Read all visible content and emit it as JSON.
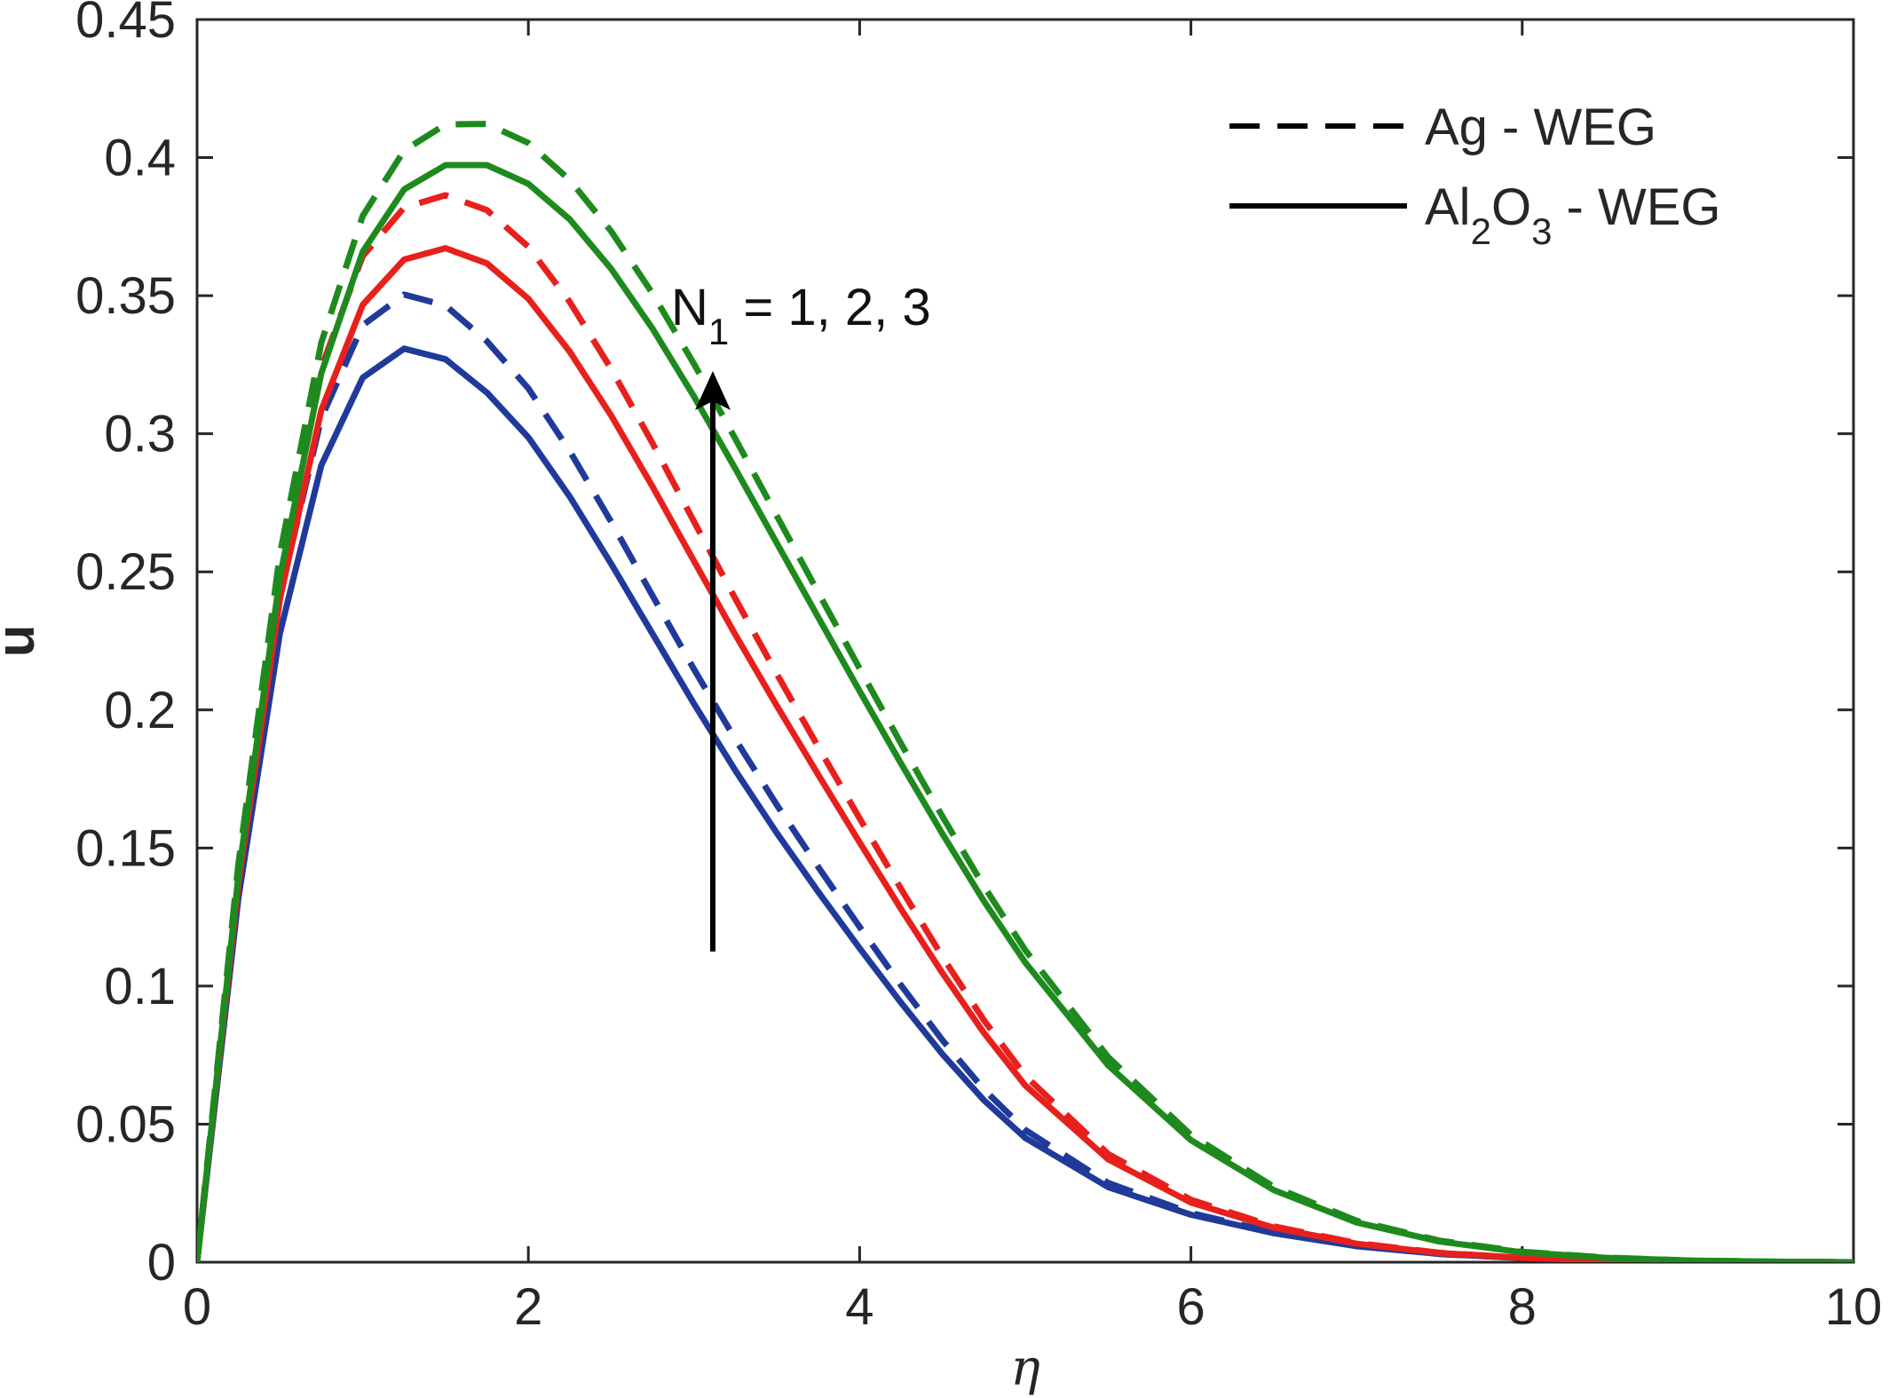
{
  "chart_data": {
    "type": "line",
    "title": "",
    "xlabel": "η",
    "ylabel": "u",
    "xlim": [
      0,
      10
    ],
    "ylim": [
      0,
      0.45
    ],
    "xticks": [
      "0",
      "2",
      "4",
      "6",
      "8",
      "10"
    ],
    "yticks": [
      "0",
      "0.05",
      "0.1",
      "0.15",
      "0.2",
      "0.25",
      "0.3",
      "0.35",
      "0.4",
      "0.45"
    ],
    "grid": false,
    "legend_position": "top-right",
    "legend": [
      {
        "label": "Ag - WEG",
        "style": "dashed"
      },
      {
        "label": "Al₂O₃ - WEG",
        "style": "solid"
      }
    ],
    "annotation": "N₁ = 1, 2, 3",
    "x": [
      0,
      0.25,
      0.5,
      0.75,
      1,
      1.25,
      1.5,
      1.75,
      2,
      2.25,
      2.5,
      2.75,
      3,
      3.25,
      3.5,
      3.75,
      4,
      4.25,
      4.5,
      4.75,
      5,
      5.5,
      6,
      6.5,
      7,
      7.5,
      8,
      8.5,
      9,
      9.5,
      10
    ],
    "series": [
      {
        "color": "#1f3a9a",
        "style": "dashed",
        "values": [
          0,
          0.1399,
          0.2412,
          0.3056,
          0.3393,
          0.3504,
          0.3464,
          0.3335,
          0.3164,
          0.2937,
          0.2681,
          0.2413,
          0.2147,
          0.1893,
          0.1656,
          0.1431,
          0.1214,
          0.1003,
          0.0804,
          0.0626,
          0.0479,
          0.0287,
          0.0178,
          0.0108,
          0.0059,
          0.003,
          0.0015,
          0.0006,
          0.0002,
          0.0001,
          0
        ]
      },
      {
        "color": "#1f3a9a",
        "style": "solid",
        "values": [
          0,
          0.132,
          0.2277,
          0.2885,
          0.3203,
          0.3308,
          0.327,
          0.3149,
          0.2987,
          0.2772,
          0.2529,
          0.2275,
          0.2022,
          0.178,
          0.1554,
          0.1341,
          0.1137,
          0.094,
          0.0753,
          0.0587,
          0.045,
          0.0272,
          0.0172,
          0.0105,
          0.0058,
          0.003,
          0.0015,
          0.0006,
          0.0002,
          0.0001,
          0
        ]
      },
      {
        "color": "#e8201c",
        "style": "dashed",
        "values": [
          0,
          0.1434,
          0.2518,
          0.3239,
          0.3643,
          0.3819,
          0.3864,
          0.381,
          0.3677,
          0.3477,
          0.3235,
          0.2965,
          0.2682,
          0.2402,
          0.213,
          0.1866,
          0.1607,
          0.1352,
          0.1106,
          0.0877,
          0.0675,
          0.0392,
          0.0226,
          0.013,
          0.0069,
          0.0034,
          0.0016,
          0.0007,
          0.0002,
          0.0001,
          0
        ]
      },
      {
        "color": "#e8201c",
        "style": "solid",
        "values": [
          0,
          0.137,
          0.2401,
          0.3085,
          0.3467,
          0.3631,
          0.3672,
          0.3617,
          0.3489,
          0.3297,
          0.3066,
          0.2808,
          0.2539,
          0.2272,
          0.2015,
          0.1765,
          0.152,
          0.1279,
          0.1047,
          0.0831,
          0.064,
          0.0373,
          0.0216,
          0.0125,
          0.0067,
          0.0033,
          0.0016,
          0.0007,
          0.0002,
          0.0001,
          0
        ]
      },
      {
        "color": "#1e8a1e",
        "style": "dashed",
        "values": [
          0,
          0.1443,
          0.2563,
          0.3329,
          0.3789,
          0.4026,
          0.412,
          0.4122,
          0.4053,
          0.3919,
          0.3733,
          0.3507,
          0.3253,
          0.2981,
          0.2703,
          0.2425,
          0.215,
          0.1878,
          0.1614,
          0.1362,
          0.113,
          0.0743,
          0.0461,
          0.0273,
          0.015,
          0.0078,
          0.0038,
          0.0017,
          0.0006,
          0.0002,
          0
        ]
      },
      {
        "color": "#1e8a1e",
        "style": "solid",
        "values": [
          0,
          0.14,
          0.2481,
          0.3218,
          0.3659,
          0.3885,
          0.3973,
          0.3973,
          0.3905,
          0.3776,
          0.3597,
          0.338,
          0.3135,
          0.2873,
          0.2604,
          0.2335,
          0.2068,
          0.1806,
          0.1551,
          0.1308,
          0.1085,
          0.0713,
          0.0442,
          0.0261,
          0.0144,
          0.0075,
          0.0036,
          0.0016,
          0.0006,
          0.0002,
          0
        ]
      }
    ]
  }
}
